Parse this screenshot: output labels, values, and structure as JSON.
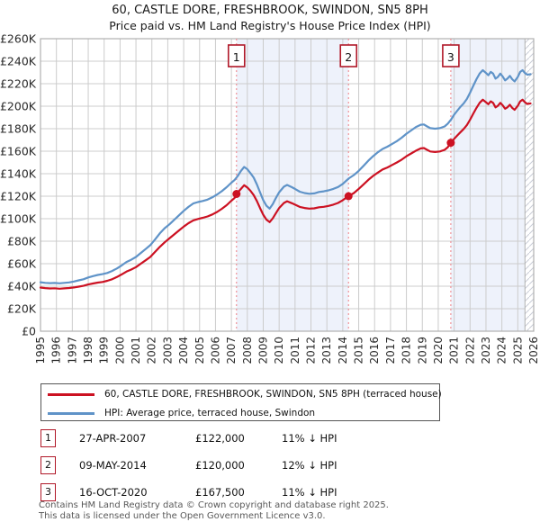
{
  "title": "60, CASTLE DORE, FRESHBROOK, SWINDON, SN5 8PH",
  "subtitle": "Price paid vs. HM Land Registry's House Price Index (HPI)",
  "chart_data": {
    "type": "line",
    "title": "60, CASTLE DORE, FRESHBROOK, SWINDON, SN5 8PH",
    "subtitle": "Price paid vs. HM Land Registry's House Price Index (HPI)",
    "xlabel": "",
    "ylabel": "",
    "x_range": [
      1995,
      2026
    ],
    "ylim": [
      0,
      260000
    ],
    "grid": true,
    "y_ticks": [
      0,
      20000,
      40000,
      60000,
      80000,
      100000,
      120000,
      140000,
      160000,
      180000,
      200000,
      220000,
      240000,
      260000
    ],
    "y_tick_labels": [
      "£0",
      "£20K",
      "£40K",
      "£60K",
      "£80K",
      "£100K",
      "£120K",
      "£140K",
      "£160K",
      "£180K",
      "£200K",
      "£220K",
      "£240K",
      "£260K"
    ],
    "x_tick_labels": [
      "1995",
      "1996",
      "1997",
      "1998",
      "1999",
      "2000",
      "2001",
      "2002",
      "2003",
      "2004",
      "2005",
      "2006",
      "2007",
      "2008",
      "2009",
      "2010",
      "2011",
      "2012",
      "2013",
      "2014",
      "2015",
      "2016",
      "2017",
      "2018",
      "2019",
      "2020",
      "2021",
      "2022",
      "2023",
      "2024",
      "2025",
      "2026"
    ],
    "shaded_regions": [
      [
        2007.32,
        2014.36
      ],
      [
        2020.79,
        2025.45
      ]
    ],
    "hatch_region": [
      2025.45,
      2026
    ],
    "colors": {
      "price_line": "#cc1122",
      "hpi_line": "#5f93c8",
      "shade": "#eef2fb",
      "grid": "#cccccc",
      "frame": "#b0b0b0",
      "sale_dash": "#ee8890",
      "marker_border": "#b01828",
      "hatch_line": "#c9cdd6"
    },
    "series": [
      {
        "name": "60, CASTLE DORE, FRESHBROOK, SWINDON, SN5 8PH (terraced house)",
        "color": "#cc1122",
        "points": [
          [
            1995.0,
            38800
          ],
          [
            1995.3,
            38300
          ],
          [
            1995.6,
            38000
          ],
          [
            1995.9,
            38200
          ],
          [
            1996.2,
            37800
          ],
          [
            1996.5,
            38100
          ],
          [
            1996.8,
            38400
          ],
          [
            1997.1,
            38900
          ],
          [
            1997.4,
            39600
          ],
          [
            1997.7,
            40300
          ],
          [
            1998.0,
            41500
          ],
          [
            1998.3,
            42400
          ],
          [
            1998.6,
            43200
          ],
          [
            1998.9,
            43800
          ],
          [
            1999.2,
            44800
          ],
          [
            1999.5,
            46200
          ],
          [
            1999.8,
            48200
          ],
          [
            2000.1,
            50500
          ],
          [
            2000.4,
            53000
          ],
          [
            2000.7,
            54800
          ],
          [
            2001.0,
            57000
          ],
          [
            2001.3,
            60000
          ],
          [
            2001.6,
            63000
          ],
          [
            2001.9,
            66000
          ],
          [
            2002.2,
            70500
          ],
          [
            2002.5,
            75000
          ],
          [
            2002.8,
            79000
          ],
          [
            2003.1,
            82500
          ],
          [
            2003.4,
            86000
          ],
          [
            2003.7,
            89500
          ],
          [
            2004.0,
            93000
          ],
          [
            2004.3,
            96000
          ],
          [
            2004.6,
            98500
          ],
          [
            2004.9,
            99800
          ],
          [
            2005.2,
            100800
          ],
          [
            2005.5,
            102000
          ],
          [
            2005.8,
            103800
          ],
          [
            2006.1,
            106000
          ],
          [
            2006.4,
            108800
          ],
          [
            2006.7,
            112000
          ],
          [
            2007.0,
            116000
          ],
          [
            2007.2,
            118500
          ],
          [
            2007.32,
            122000
          ],
          [
            2007.6,
            126500
          ],
          [
            2007.8,
            129800
          ],
          [
            2008.0,
            127800
          ],
          [
            2008.2,
            124800
          ],
          [
            2008.4,
            121000
          ],
          [
            2008.6,
            115800
          ],
          [
            2008.8,
            109500
          ],
          [
            2009.0,
            103500
          ],
          [
            2009.2,
            99200
          ],
          [
            2009.4,
            97000
          ],
          [
            2009.6,
            100300
          ],
          [
            2009.8,
            105000
          ],
          [
            2010.0,
            109500
          ],
          [
            2010.3,
            114000
          ],
          [
            2010.5,
            115500
          ],
          [
            2010.8,
            113800
          ],
          [
            2011.0,
            112500
          ],
          [
            2011.3,
            110500
          ],
          [
            2011.6,
            109500
          ],
          [
            2011.9,
            109000
          ],
          [
            2012.2,
            109200
          ],
          [
            2012.5,
            110200
          ],
          [
            2012.8,
            110600
          ],
          [
            2013.1,
            111400
          ],
          [
            2013.4,
            112500
          ],
          [
            2013.7,
            114000
          ],
          [
            2014.0,
            116500
          ],
          [
            2014.2,
            118500
          ],
          [
            2014.36,
            120000
          ],
          [
            2014.7,
            122800
          ],
          [
            2015.0,
            126500
          ],
          [
            2015.3,
            130500
          ],
          [
            2015.6,
            134500
          ],
          [
            2015.9,
            138000
          ],
          [
            2016.2,
            141000
          ],
          [
            2016.5,
            143800
          ],
          [
            2016.8,
            145500
          ],
          [
            2017.1,
            147800
          ],
          [
            2017.4,
            150000
          ],
          [
            2017.7,
            152500
          ],
          [
            2018.0,
            155500
          ],
          [
            2018.3,
            158000
          ],
          [
            2018.6,
            160500
          ],
          [
            2018.9,
            162500
          ],
          [
            2019.1,
            162800
          ],
          [
            2019.3,
            161200
          ],
          [
            2019.5,
            159800
          ],
          [
            2019.8,
            159300
          ],
          [
            2020.1,
            159800
          ],
          [
            2020.4,
            161200
          ],
          [
            2020.6,
            163500
          ],
          [
            2020.79,
            167500
          ],
          [
            2021.0,
            171000
          ],
          [
            2021.2,
            174000
          ],
          [
            2021.4,
            177000
          ],
          [
            2021.6,
            179800
          ],
          [
            2021.8,
            183300
          ],
          [
            2022.0,
            188000
          ],
          [
            2022.2,
            193300
          ],
          [
            2022.4,
            198500
          ],
          [
            2022.6,
            203000
          ],
          [
            2022.8,
            205800
          ],
          [
            2023.0,
            203500
          ],
          [
            2023.15,
            201800
          ],
          [
            2023.3,
            204300
          ],
          [
            2023.45,
            203000
          ],
          [
            2023.6,
            199000
          ],
          [
            2023.75,
            200300
          ],
          [
            2023.9,
            203000
          ],
          [
            2024.05,
            200800
          ],
          [
            2024.2,
            197800
          ],
          [
            2024.35,
            199000
          ],
          [
            2024.5,
            201300
          ],
          [
            2024.65,
            198500
          ],
          [
            2024.8,
            196800
          ],
          [
            2025.0,
            200300
          ],
          [
            2025.15,
            204300
          ],
          [
            2025.3,
            205800
          ],
          [
            2025.45,
            203500
          ],
          [
            2025.6,
            202000
          ],
          [
            2025.8,
            202500
          ]
        ]
      },
      {
        "name": "HPI: Average price, terraced house, Swindon",
        "color": "#5f93c8",
        "points": [
          [
            1995.0,
            43500
          ],
          [
            1995.3,
            43000
          ],
          [
            1995.6,
            42700
          ],
          [
            1995.9,
            42900
          ],
          [
            1996.2,
            42600
          ],
          [
            1996.5,
            43000
          ],
          [
            1996.8,
            43400
          ],
          [
            1997.1,
            44200
          ],
          [
            1997.4,
            45200
          ],
          [
            1997.7,
            46200
          ],
          [
            1998.0,
            47800
          ],
          [
            1998.3,
            49000
          ],
          [
            1998.6,
            50000
          ],
          [
            1998.9,
            50700
          ],
          [
            1999.2,
            51800
          ],
          [
            1999.5,
            53500
          ],
          [
            1999.8,
            55800
          ],
          [
            2000.1,
            58500
          ],
          [
            2000.4,
            61500
          ],
          [
            2000.7,
            63500
          ],
          [
            2001.0,
            66000
          ],
          [
            2001.3,
            69500
          ],
          [
            2001.6,
            73000
          ],
          [
            2001.9,
            76500
          ],
          [
            2002.2,
            81500
          ],
          [
            2002.5,
            87000
          ],
          [
            2002.8,
            91500
          ],
          [
            2003.1,
            95000
          ],
          [
            2003.4,
            99000
          ],
          [
            2003.7,
            103000
          ],
          [
            2004.0,
            107000
          ],
          [
            2004.3,
            110500
          ],
          [
            2004.6,
            113500
          ],
          [
            2004.9,
            114800
          ],
          [
            2005.2,
            115800
          ],
          [
            2005.5,
            117000
          ],
          [
            2005.8,
            119000
          ],
          [
            2006.1,
            121500
          ],
          [
            2006.4,
            124500
          ],
          [
            2006.7,
            128000
          ],
          [
            2007.0,
            132000
          ],
          [
            2007.2,
            134500
          ],
          [
            2007.4,
            138000
          ],
          [
            2007.6,
            142500
          ],
          [
            2007.8,
            146000
          ],
          [
            2008.0,
            144000
          ],
          [
            2008.2,
            140500
          ],
          [
            2008.4,
            136500
          ],
          [
            2008.6,
            130500
          ],
          [
            2008.8,
            123500
          ],
          [
            2009.0,
            116500
          ],
          [
            2009.2,
            111500
          ],
          [
            2009.4,
            109000
          ],
          [
            2009.6,
            113000
          ],
          [
            2009.8,
            118500
          ],
          [
            2010.0,
            123500
          ],
          [
            2010.3,
            128500
          ],
          [
            2010.5,
            130000
          ],
          [
            2010.8,
            128000
          ],
          [
            2011.0,
            126500
          ],
          [
            2011.3,
            124000
          ],
          [
            2011.6,
            122800
          ],
          [
            2011.9,
            122200
          ],
          [
            2012.2,
            122500
          ],
          [
            2012.5,
            123800
          ],
          [
            2012.8,
            124300
          ],
          [
            2013.1,
            125200
          ],
          [
            2013.4,
            126500
          ],
          [
            2013.7,
            128200
          ],
          [
            2014.0,
            131000
          ],
          [
            2014.2,
            133500
          ],
          [
            2014.4,
            136000
          ],
          [
            2014.7,
            138800
          ],
          [
            2015.0,
            142500
          ],
          [
            2015.3,
            147000
          ],
          [
            2015.6,
            151500
          ],
          [
            2015.9,
            155500
          ],
          [
            2016.2,
            159000
          ],
          [
            2016.5,
            162000
          ],
          [
            2016.8,
            164000
          ],
          [
            2017.1,
            166500
          ],
          [
            2017.4,
            169000
          ],
          [
            2017.7,
            172000
          ],
          [
            2018.0,
            175500
          ],
          [
            2018.3,
            178500
          ],
          [
            2018.6,
            181500
          ],
          [
            2018.9,
            183500
          ],
          [
            2019.1,
            183800
          ],
          [
            2019.3,
            182000
          ],
          [
            2019.5,
            180500
          ],
          [
            2019.8,
            180000
          ],
          [
            2020.1,
            180500
          ],
          [
            2020.4,
            182000
          ],
          [
            2020.6,
            184500
          ],
          [
            2020.8,
            188000
          ],
          [
            2021.0,
            192500
          ],
          [
            2021.2,
            196000
          ],
          [
            2021.4,
            199500
          ],
          [
            2021.6,
            202500
          ],
          [
            2021.8,
            206500
          ],
          [
            2022.0,
            212000
          ],
          [
            2022.2,
            218000
          ],
          [
            2022.4,
            224000
          ],
          [
            2022.6,
            229000
          ],
          [
            2022.8,
            232000
          ],
          [
            2023.0,
            229500
          ],
          [
            2023.15,
            227500
          ],
          [
            2023.3,
            230500
          ],
          [
            2023.45,
            229000
          ],
          [
            2023.6,
            224500
          ],
          [
            2023.75,
            226000
          ],
          [
            2023.9,
            229000
          ],
          [
            2024.05,
            226500
          ],
          [
            2024.2,
            223000
          ],
          [
            2024.35,
            224500
          ],
          [
            2024.5,
            227000
          ],
          [
            2024.65,
            224000
          ],
          [
            2024.8,
            222000
          ],
          [
            2025.0,
            226000
          ],
          [
            2025.15,
            230500
          ],
          [
            2025.3,
            232000
          ],
          [
            2025.45,
            229500
          ],
          [
            2025.6,
            228000
          ],
          [
            2025.8,
            228500
          ]
        ]
      }
    ],
    "sale_markers": [
      {
        "num": "1",
        "x_year": 2007.32,
        "price": 122000
      },
      {
        "num": "2",
        "x_year": 2014.36,
        "price": 120000
      },
      {
        "num": "3",
        "x_year": 2020.79,
        "price": 167500
      }
    ]
  },
  "legend": {
    "items": [
      {
        "label": "60, CASTLE DORE, FRESHBROOK, SWINDON, SN5 8PH (terraced house)",
        "color": "#cc1122"
      },
      {
        "label": "HPI: Average price, terraced house, Swindon",
        "color": "#5f93c8"
      }
    ]
  },
  "sales_table": {
    "rows": [
      {
        "num": "1",
        "date": "27-APR-2007",
        "price": "£122,000",
        "hpi_diff": "11% ↓ HPI"
      },
      {
        "num": "2",
        "date": "09-MAY-2014",
        "price": "£120,000",
        "hpi_diff": "12% ↓ HPI"
      },
      {
        "num": "3",
        "date": "16-OCT-2020",
        "price": "£167,500",
        "hpi_diff": "11% ↓ HPI"
      }
    ]
  },
  "footer": {
    "line1": "Contains HM Land Registry data © Crown copyright and database right 2025.",
    "line2": "This data is licensed under the Open Government Licence v3.0."
  }
}
